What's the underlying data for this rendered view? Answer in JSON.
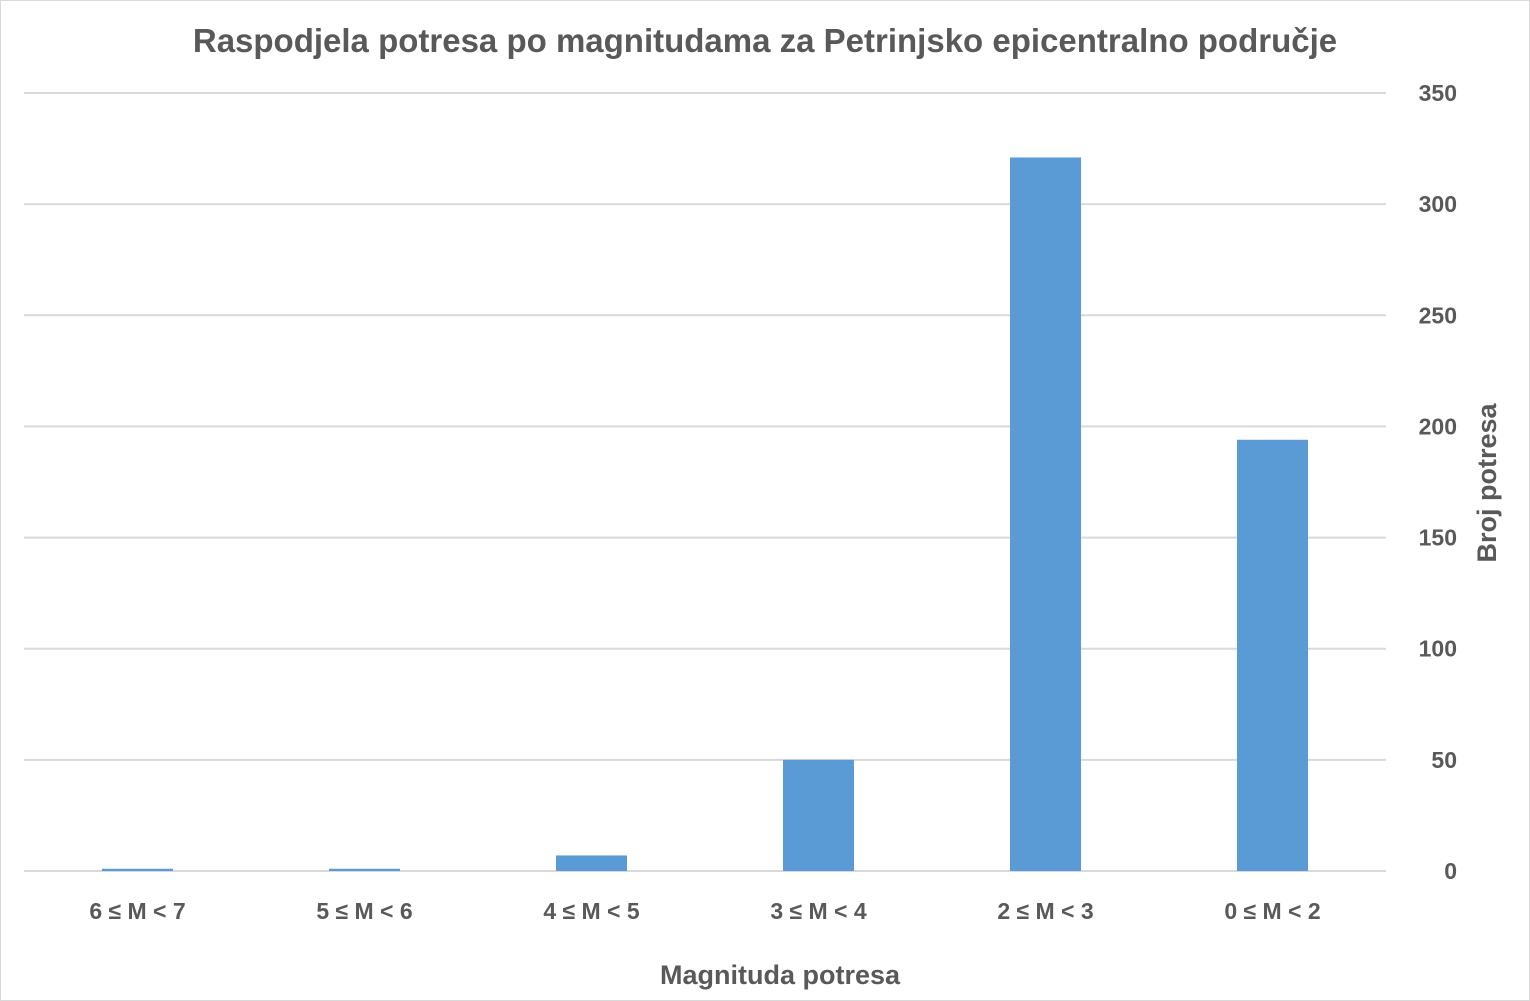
{
  "chart_data": {
    "type": "bar",
    "title": "Raspodjela potresa po magnitudama za Petrinjsko epicentralno područje",
    "xlabel": "Magnituda potresa",
    "ylabel": "Broj potresa",
    "categories": [
      "6 ≤ M < 7",
      "5 ≤ M < 6",
      "4 ≤ M < 5",
      "3 ≤ M < 4",
      "2 ≤ M < 3",
      "0 ≤ M < 2"
    ],
    "values": [
      1,
      1,
      7,
      50,
      321,
      194
    ],
    "ylim": [
      0,
      350
    ],
    "yticks": [
      0,
      50,
      100,
      150,
      200,
      250,
      300,
      350
    ],
    "y_axis_position": "right",
    "grid": true,
    "legend": "none",
    "colors": {
      "bar": "#5b9bd5",
      "grid": "#d9d9d9",
      "text": "#595959"
    }
  }
}
